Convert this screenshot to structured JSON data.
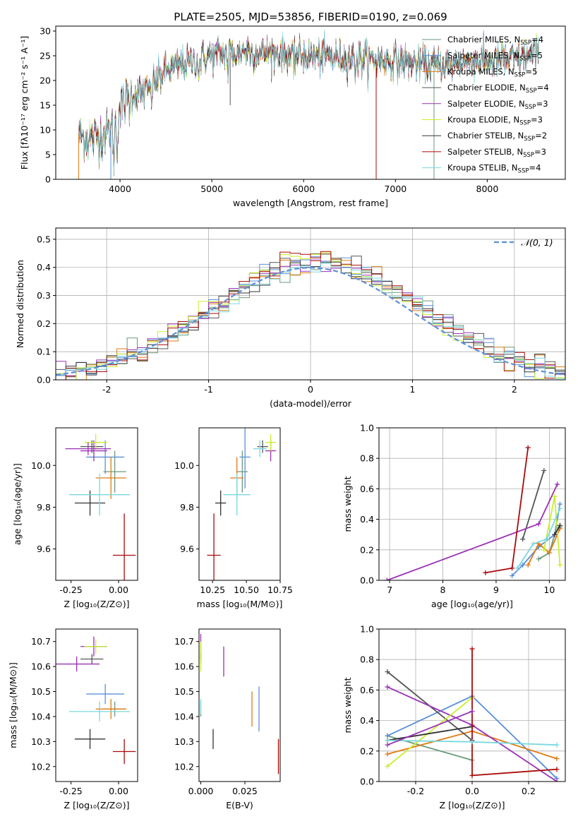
{
  "figure_title": "PLATE=2505, MJD=53856, FIBERID=0190, z=0.069",
  "colors": [
    "#6a9a7a",
    "#5a8fd8",
    "#e07a10",
    "#555555",
    "#9b30b5",
    "#c8ef2a",
    "#333333",
    "#aa0a0a",
    "#7ad8e0"
  ],
  "chart_data": [
    {
      "id": "spectrum",
      "type": "line",
      "title": "PLATE=2505, MJD=53856, FIBERID=0190, z=0.069",
      "xlabel": "wavelength [Angstrom, rest frame]",
      "ylabel": "Flux [fλ10⁻¹⁷ erg cm⁻² s⁻¹ A⁻¹]",
      "xlim": [
        3300,
        8850
      ],
      "ylim": [
        0,
        31
      ],
      "xticks": [
        4000,
        5000,
        6000,
        7000,
        8000
      ],
      "yticks": [
        0,
        5,
        10,
        15,
        20,
        25,
        30
      ],
      "continuum": [
        [
          3550,
          9
        ],
        [
          3700,
          8
        ],
        [
          3900,
          10
        ],
        [
          4000,
          14
        ],
        [
          4100,
          17
        ],
        [
          4300,
          18
        ],
        [
          4500,
          22
        ],
        [
          4800,
          24
        ],
        [
          5000,
          25
        ],
        [
          5300,
          26
        ],
        [
          5600,
          25.5
        ],
        [
          6000,
          25
        ],
        [
          6500,
          24.5
        ],
        [
          7000,
          24
        ],
        [
          7400,
          23
        ],
        [
          7800,
          24
        ],
        [
          8200,
          24
        ],
        [
          8500,
          25
        ]
      ],
      "legend_position": "upper right",
      "series": [
        {
          "name": "Chabrier MILES, N",
          "sub": "SSP",
          "suffix": "=4"
        },
        {
          "name": "Salpeter MILES, N",
          "sub": "SSP",
          "suffix": "=5"
        },
        {
          "name": "Kroupa MILES, N",
          "sub": "SSP",
          "suffix": "=5"
        },
        {
          "name": "Chabrier ELODIE, N",
          "sub": "SSP",
          "suffix": "=4"
        },
        {
          "name": "Salpeter ELODIE, N",
          "sub": "SSP",
          "suffix": "=3"
        },
        {
          "name": "Kroupa ELODIE, N",
          "sub": "SSP",
          "suffix": "=3"
        },
        {
          "name": "Chabrier STELIB, N",
          "sub": "SSP",
          "suffix": "=2"
        },
        {
          "name": "Salpeter STELIB, N",
          "sub": "SSP",
          "suffix": "=3"
        },
        {
          "name": "Kroupa STELIB, N",
          "sub": "SSP",
          "suffix": "=4"
        }
      ]
    },
    {
      "id": "residual_hist",
      "type": "line",
      "xlabel": "(data-model)/error",
      "ylabel": "Normed distribution",
      "xlim": [
        -2.5,
        2.5
      ],
      "ylim": [
        0,
        0.54
      ],
      "xticks": [
        -2,
        -1,
        0,
        1,
        2
      ],
      "yticks": [
        0.0,
        0.1,
        0.2,
        0.3,
        0.4,
        0.5
      ],
      "grid": true,
      "bin_width": 0.1,
      "reference_curve": "N(0,1)",
      "legend": "𝒩(0, 1)"
    },
    {
      "id": "age_vs_Z",
      "type": "scatter",
      "xlabel": "Z [log₁₀(Z/Z⊙)]",
      "ylabel": "age  [log₁₀(age/yr)]",
      "xlim": [
        -0.33,
        0.1
      ],
      "ylim": [
        9.45,
        10.18
      ],
      "xticks": [
        -0.25,
        0.0
      ],
      "yticks": [
        9.6,
        9.8,
        10.0
      ],
      "points": [
        {
          "x": -0.02,
          "y": 9.97,
          "xerr": 0.06,
          "yerr": 0.1,
          "c": 0
        },
        {
          "x": -0.07,
          "y": 10.04,
          "xerr": 0.1,
          "yerr": 0.08,
          "c": 1
        },
        {
          "x": -0.04,
          "y": 9.94,
          "xerr": 0.08,
          "yerr": 0.1,
          "c": 2
        },
        {
          "x": -0.14,
          "y": 10.09,
          "xerr": 0.06,
          "yerr": 0.03,
          "c": 3
        },
        {
          "x": -0.13,
          "y": 10.07,
          "xerr": 0.07,
          "yerr": 0.05,
          "c": 4
        },
        {
          "x": -0.12,
          "y": 10.11,
          "xerr": 0.06,
          "yerr": 0.04,
          "c": 5
        },
        {
          "x": -0.15,
          "y": 9.82,
          "xerr": 0.08,
          "yerr": 0.06,
          "c": 6
        },
        {
          "x": 0.03,
          "y": 9.57,
          "xerr": 0.06,
          "yerr": 0.2,
          "c": 7
        },
        {
          "x": -0.1,
          "y": 9.86,
          "xerr": 0.16,
          "yerr": 0.1,
          "c": 8
        },
        {
          "x": -0.16,
          "y": 10.08,
          "xerr": 0.12,
          "yerr": 0.03,
          "c": 4
        }
      ]
    },
    {
      "id": "age_vs_mass",
      "type": "scatter",
      "xlabel": "mass [log₁₀(M/M⊙)]",
      "ylabel": "",
      "xlim": [
        10.15,
        10.75
      ],
      "ylim": [
        9.45,
        10.18
      ],
      "xticks": [
        10.25,
        10.5,
        10.75
      ],
      "yticks": [
        9.6,
        9.8,
        10.0
      ],
      "points": [
        {
          "x": 10.47,
          "y": 9.97,
          "xerr": 0.04,
          "yerr": 0.1,
          "c": 0
        },
        {
          "x": 10.49,
          "y": 10.04,
          "xerr": 0.04,
          "yerr": 0.15,
          "c": 1
        },
        {
          "x": 10.43,
          "y": 9.94,
          "xerr": 0.05,
          "yerr": 0.1,
          "c": 2
        },
        {
          "x": 10.62,
          "y": 10.09,
          "xerr": 0.04,
          "yerr": 0.03,
          "c": 3
        },
        {
          "x": 10.68,
          "y": 10.07,
          "xerr": 0.04,
          "yerr": 0.05,
          "c": 4
        },
        {
          "x": 10.68,
          "y": 10.11,
          "xerr": 0.04,
          "yerr": 0.04,
          "c": 5
        },
        {
          "x": 10.31,
          "y": 9.82,
          "xerr": 0.04,
          "yerr": 0.06,
          "c": 6
        },
        {
          "x": 10.26,
          "y": 9.57,
          "xerr": 0.05,
          "yerr": 0.2,
          "c": 7
        },
        {
          "x": 10.43,
          "y": 9.86,
          "xerr": 0.1,
          "yerr": 0.1,
          "c": 8
        },
        {
          "x": 10.6,
          "y": 10.08,
          "xerr": 0.05,
          "yerr": 0.04,
          "c": 8
        }
      ]
    },
    {
      "id": "massweight_vs_age",
      "type": "line",
      "xlabel": "age  [log₁₀(age/yr)]",
      "ylabel": "mass weight",
      "xlim": [
        6.8,
        10.3
      ],
      "ylim": [
        0,
        1.0
      ],
      "xticks": [
        7,
        8,
        9,
        10
      ],
      "yticks": [
        0.0,
        0.2,
        0.4,
        0.6,
        0.8,
        1.0
      ],
      "grid": true,
      "series": [
        {
          "c": 0,
          "x": [
            9.8,
            10.0,
            10.1,
            10.2
          ],
          "y": [
            0.14,
            0.18,
            0.3,
            0.35
          ]
        },
        {
          "c": 1,
          "x": [
            9.3,
            9.5,
            9.8,
            10.1,
            10.2
          ],
          "y": [
            0.03,
            0.1,
            0.22,
            0.3,
            0.5
          ]
        },
        {
          "c": 2,
          "x": [
            9.6,
            9.8,
            10.0,
            10.2
          ],
          "y": [
            0.1,
            0.24,
            0.18,
            0.34
          ]
        },
        {
          "c": 3,
          "x": [
            9.5,
            9.9
          ],
          "y": [
            0.27,
            0.72
          ]
        },
        {
          "c": 4,
          "x": [
            6.95,
            9.8,
            10.15
          ],
          "y": [
            0.0,
            0.37,
            0.63
          ]
        },
        {
          "c": 5,
          "x": [
            9.9,
            10.1,
            10.2
          ],
          "y": [
            0.2,
            0.55,
            0.1
          ]
        },
        {
          "c": 6,
          "x": [
            10.1,
            10.2
          ],
          "y": [
            0.3,
            0.36
          ]
        },
        {
          "c": 7,
          "x": [
            8.8,
            9.3,
            9.6
          ],
          "y": [
            0.05,
            0.08,
            0.87
          ]
        },
        {
          "c": 8,
          "x": [
            9.4,
            9.7,
            9.95,
            10.2
          ],
          "y": [
            0.08,
            0.24,
            0.27,
            0.47
          ]
        }
      ]
    },
    {
      "id": "mass_vs_Z",
      "type": "scatter",
      "xlabel": "Z [log₁₀(Z/Z⊙)]",
      "ylabel": "mass [log₁₀(M/M⊙)]",
      "xlim": [
        -0.33,
        0.1
      ],
      "ylim": [
        10.14,
        10.75
      ],
      "xticks": [
        -0.25,
        0.0
      ],
      "yticks": [
        10.2,
        10.3,
        10.4,
        10.5,
        10.6,
        10.7
      ],
      "points": [
        {
          "x": -0.02,
          "y": 10.43,
          "xerr": 0.06,
          "yerr": 0.03,
          "c": 0
        },
        {
          "x": -0.07,
          "y": 10.49,
          "xerr": 0.1,
          "yerr": 0.04,
          "c": 1
        },
        {
          "x": -0.04,
          "y": 10.43,
          "xerr": 0.08,
          "yerr": 0.04,
          "c": 2
        },
        {
          "x": -0.14,
          "y": 10.63,
          "xerr": 0.06,
          "yerr": 0.02,
          "c": 3
        },
        {
          "x": -0.13,
          "y": 10.68,
          "xerr": 0.07,
          "yerr": 0.04,
          "c": 4
        },
        {
          "x": -0.12,
          "y": 10.68,
          "xerr": 0.06,
          "yerr": 0.03,
          "c": 5
        },
        {
          "x": -0.15,
          "y": 10.31,
          "xerr": 0.08,
          "yerr": 0.04,
          "c": 6
        },
        {
          "x": 0.03,
          "y": 10.26,
          "xerr": 0.06,
          "yerr": 0.05,
          "c": 7
        },
        {
          "x": -0.1,
          "y": 10.42,
          "xerr": 0.16,
          "yerr": 0.04,
          "c": 8
        },
        {
          "x": -0.22,
          "y": 10.61,
          "xerr": 0.12,
          "yerr": 0.03,
          "c": 4
        }
      ]
    },
    {
      "id": "mass_vs_EBV",
      "type": "scatter",
      "xlabel": "E(B-V)",
      "ylabel": "",
      "xlim": [
        -0.001,
        0.045
      ],
      "ylim": [
        10.14,
        10.75
      ],
      "xticks": [
        0.0,
        0.025
      ],
      "yticks": [
        10.2,
        10.3,
        10.4,
        10.5,
        10.6,
        10.7
      ],
      "points": [
        {
          "x": 0.0,
          "y": 10.43,
          "xerr": 0,
          "yerr": 0.03,
          "c": 0
        },
        {
          "x": 0.033,
          "y": 10.43,
          "xerr": 0,
          "yerr": 0.09,
          "c": 1
        },
        {
          "x": 0.029,
          "y": 10.43,
          "xerr": 0,
          "yerr": 0.07,
          "c": 2
        },
        {
          "x": 0.0,
          "y": 10.63,
          "xerr": 0,
          "yerr": 0.02,
          "c": 3
        },
        {
          "x": 0.0,
          "y": 10.68,
          "xerr": 0,
          "yerr": 0.05,
          "c": 4
        },
        {
          "x": 0.0,
          "y": 10.64,
          "xerr": 0,
          "yerr": 0.06,
          "c": 5
        },
        {
          "x": 0.007,
          "y": 10.31,
          "xerr": 0,
          "yerr": 0.04,
          "c": 6
        },
        {
          "x": 0.044,
          "y": 10.24,
          "xerr": 0,
          "yerr": 0.07,
          "c": 7
        },
        {
          "x": 0.0,
          "y": 10.44,
          "xerr": 0,
          "yerr": 0.03,
          "c": 8
        },
        {
          "x": 0.013,
          "y": 10.62,
          "xerr": 0,
          "yerr": 0.06,
          "c": 4
        }
      ]
    },
    {
      "id": "massweight_vs_Z",
      "type": "line",
      "xlabel": "Z [log₁₀(Z/Z⊙)]",
      "ylabel": "mass weight",
      "xlim": [
        -0.33,
        0.33
      ],
      "ylim": [
        0,
        1.0
      ],
      "xticks": [
        -0.2,
        0.0,
        0.2
      ],
      "yticks": [
        0.0,
        0.2,
        0.4,
        0.6,
        0.8,
        1.0
      ],
      "grid": true,
      "series": [
        {
          "c": 0,
          "x": [
            -0.3,
            0.0
          ],
          "y": [
            0.3,
            0.14
          ]
        },
        {
          "c": 1,
          "x": [
            -0.3,
            0.0,
            0.3
          ],
          "y": [
            0.3,
            0.56,
            0.02
          ]
        },
        {
          "c": 2,
          "x": [
            -0.3,
            0.0,
            0.3
          ],
          "y": [
            0.18,
            0.33,
            0.15
          ]
        },
        {
          "c": 3,
          "x": [
            -0.3,
            0.0
          ],
          "y": [
            0.72,
            0.27
          ]
        },
        {
          "c": 4,
          "x": [
            -0.3,
            0.0,
            0.3
          ],
          "y": [
            0.62,
            0.37,
            0.0
          ]
        },
        {
          "c": 5,
          "x": [
            -0.3,
            0.0
          ],
          "y": [
            0.1,
            0.55
          ]
        },
        {
          "c": 6,
          "x": [
            -0.3,
            0.0
          ],
          "y": [
            0.27,
            0.36
          ]
        },
        {
          "c": 7,
          "x": [
            0.0,
            0.0,
            0.3
          ],
          "y": [
            0.87,
            0.04,
            0.08
          ]
        },
        {
          "c": 8,
          "x": [
            -0.3,
            0.0,
            0.3
          ],
          "y": [
            0.27,
            0.26,
            0.24
          ]
        },
        {
          "c": 4,
          "x": [
            -0.3,
            0.0
          ],
          "y": [
            0.24,
            0.46
          ]
        }
      ]
    }
  ]
}
